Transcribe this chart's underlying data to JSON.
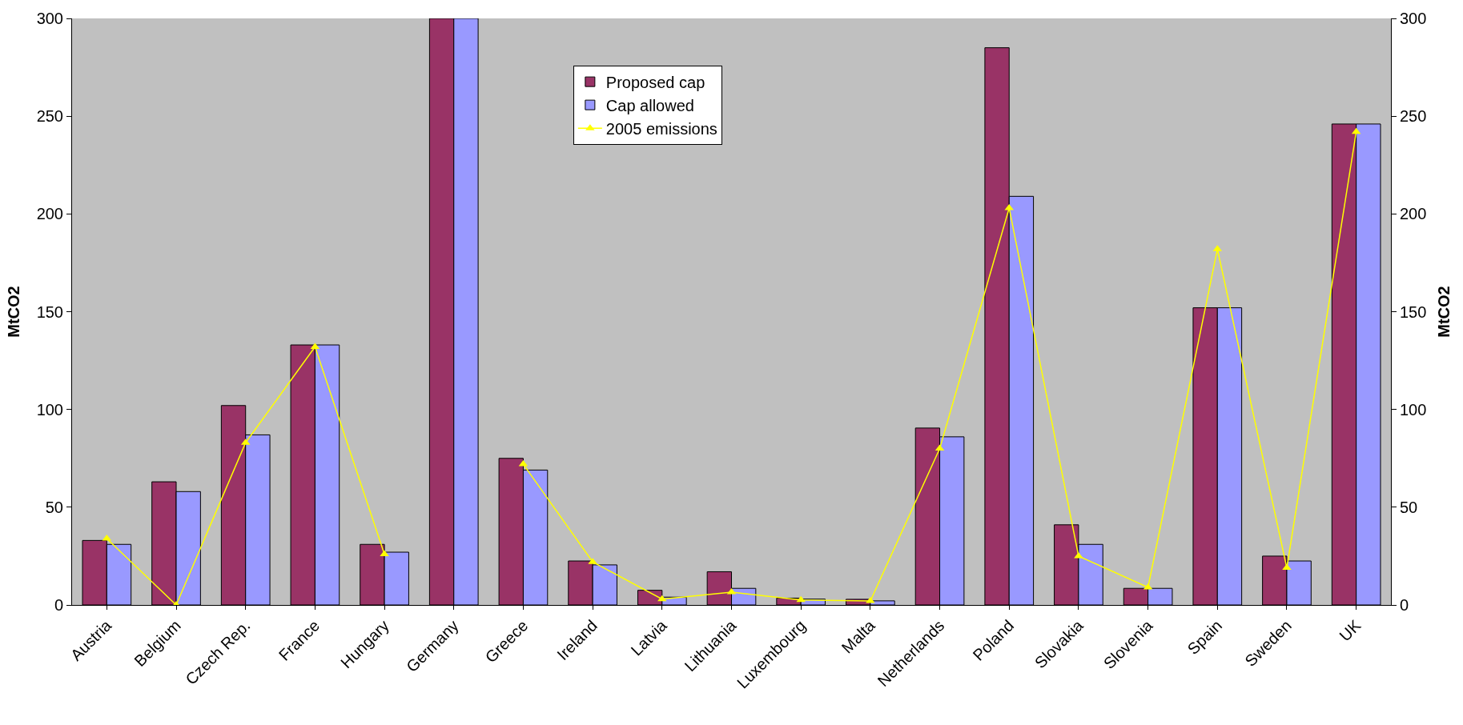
{
  "chart_data": {
    "type": "bar",
    "ylabel": "MtCO2",
    "y2label": "MtCO2",
    "categories": [
      "Austria",
      "Belgium",
      "Czech Rep.",
      "France",
      "Hungary",
      "Germany",
      "Greece",
      "Ireland",
      "Latvia",
      "Lithuania",
      "Luxembourg",
      "Malta",
      "Netherlands",
      "Poland",
      "Slovakia",
      "Slovenia",
      "Spain",
      "Sweden",
      "UK"
    ],
    "series": [
      {
        "name": "Proposed cap",
        "color": "#993366",
        "values": [
          33,
          63,
          102,
          133,
          31,
          300,
          75,
          22.5,
          7.5,
          17,
          3.5,
          2.9,
          90.5,
          285,
          41,
          8.5,
          152,
          25,
          246
        ]
      },
      {
        "name": "Cap allowed",
        "color": "#9999ff",
        "values": [
          31,
          58,
          87,
          133,
          27,
          300,
          69,
          20.5,
          4,
          8.5,
          3,
          2.1,
          86,
          209,
          31,
          8.5,
          152,
          22.5,
          246
        ]
      },
      {
        "name": "2005 emissions",
        "color": "#ffff00",
        "type": "line",
        "axis": "y2",
        "marker": "triangle",
        "values": [
          34,
          0,
          83,
          132,
          26,
          null,
          72,
          22,
          3,
          6.5,
          2.6,
          2,
          80,
          203,
          25,
          9,
          182,
          19,
          242
        ]
      }
    ],
    "ylim": [
      0,
      300
    ],
    "yticks": [
      0,
      50,
      100,
      150,
      200,
      250,
      300
    ],
    "y2lim": [
      0,
      300
    ],
    "y2ticks": [
      0,
      50,
      100,
      150,
      200,
      250,
      300
    ],
    "legend": "top",
    "grid": false
  }
}
